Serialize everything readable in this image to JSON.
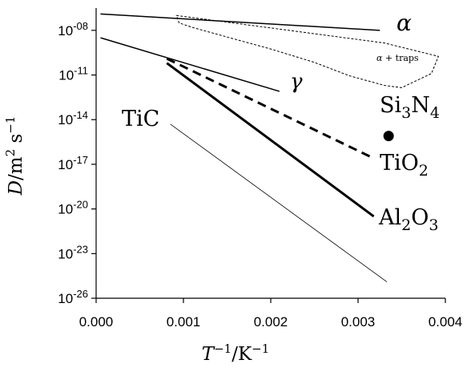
{
  "chart_data": {
    "type": "line",
    "xlabel": {
      "main": "T",
      "sup1": "−1",
      "mid": "/K",
      "sup2": "−1"
    },
    "ylabel": {
      "main": "D",
      "mid": "/m",
      "sup1": "2",
      "space": " s",
      "sup2": "−1"
    },
    "xlim": [
      0.0,
      0.004
    ],
    "ylim": [
      -26,
      -6.5
    ],
    "y_scale": "log10",
    "x_ticks": [
      {
        "value": 0.0,
        "label": "0.000"
      },
      {
        "value": 0.001,
        "label": "0.001"
      },
      {
        "value": 0.002,
        "label": "0.002"
      },
      {
        "value": 0.003,
        "label": "0.003"
      },
      {
        "value": 0.004,
        "label": "0.004"
      }
    ],
    "y_ticks": [
      {
        "value": -8,
        "base": "10",
        "exp": "-08"
      },
      {
        "value": -11,
        "base": "10",
        "exp": "-11"
      },
      {
        "value": -14,
        "base": "10",
        "exp": "-14"
      },
      {
        "value": -17,
        "base": "10",
        "exp": "-17"
      },
      {
        "value": -20,
        "base": "10",
        "exp": "-20"
      },
      {
        "value": -23,
        "base": "10",
        "exp": "-23"
      },
      {
        "value": -26,
        "base": "10",
        "exp": "-26"
      }
    ],
    "grid": false,
    "series": [
      {
        "id": "alpha",
        "style": "thin",
        "x": [
          5e-05,
          0.00325
        ],
        "y": [
          -6.9,
          -8.0
        ]
      },
      {
        "id": "gamma",
        "style": "thin",
        "x": [
          5e-05,
          0.0021
        ],
        "y": [
          -8.5,
          -12.1
        ]
      },
      {
        "id": "tic",
        "style": "hair",
        "x": [
          0.00085,
          0.00333
        ],
        "y": [
          -14.3,
          -24.9
        ]
      },
      {
        "id": "al2o3",
        "style": "bold",
        "x": [
          0.00081,
          0.00318
        ],
        "y": [
          -10.2,
          -20.5
        ]
      },
      {
        "id": "tio2",
        "style": "dashed",
        "x": [
          0.00081,
          0.00318
        ],
        "y": [
          -9.9,
          -16.6
        ]
      }
    ],
    "traps_region": {
      "id": "alpha-traps",
      "x": [
        0.00092,
        0.0033,
        0.00392,
        0.00384,
        0.0035,
        0.0033,
        0.0029,
        0.0025,
        0.002,
        0.0015,
        0.0011,
        0.00095,
        0.00092
      ],
      "y": [
        -7.0,
        -8.85,
        -9.75,
        -10.9,
        -11.85,
        -11.7,
        -11.05,
        -10.15,
        -9.25,
        -8.45,
        -7.8,
        -7.5,
        -7.0
      ]
    },
    "points": [
      {
        "id": "si3n4-point",
        "x": 0.00335,
        "y": -15.1
      }
    ],
    "annotations": {
      "alpha": {
        "sym": "α"
      },
      "gamma": {
        "sym": "γ"
      },
      "traps": {
        "sym": "α",
        "rest": " + traps"
      },
      "tic": {
        "text": "TiC"
      },
      "si3n4": {
        "a": "Si",
        "b": "3",
        "c": "N",
        "d": "4"
      },
      "tio2": {
        "a": "TiO",
        "b": "2"
      },
      "al2o3": {
        "a": "Al",
        "b": "2",
        "c": "O",
        "d": "3"
      }
    }
  }
}
